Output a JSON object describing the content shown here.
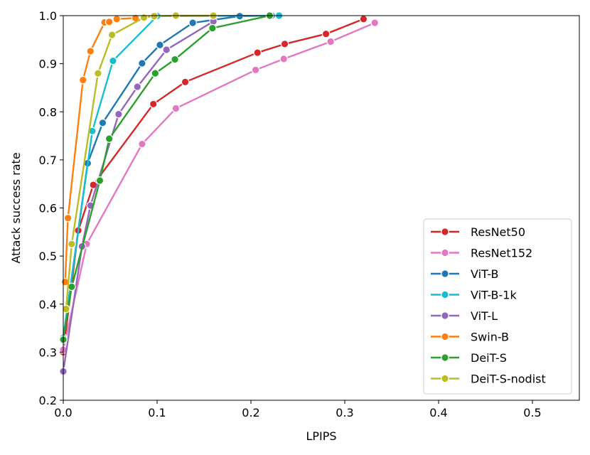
{
  "chart_data": {
    "type": "line",
    "title": "",
    "xlabel": "LPIPS",
    "ylabel": "Attack success rate",
    "xlim": [
      0.0,
      0.55
    ],
    "ylim": [
      0.2,
      1.0
    ],
    "xticks": [
      0.0,
      0.1,
      0.2,
      0.3,
      0.4,
      0.5
    ],
    "xtick_labels": [
      "0.0",
      "0.1",
      "0.2",
      "0.3",
      "0.4",
      "0.5"
    ],
    "yticks": [
      0.2,
      0.3,
      0.4,
      0.5,
      0.6,
      0.7,
      0.8,
      0.9,
      1.0
    ],
    "ytick_labels": [
      "0.2",
      "0.3",
      "0.4",
      "0.5",
      "0.6",
      "0.7",
      "0.8",
      "0.9",
      "1.0"
    ],
    "grid": false,
    "legend_position": "lower-right",
    "series": [
      {
        "name": "ResNet50",
        "color": "#d62728",
        "x": [
          0.0,
          0.016,
          0.032,
          0.096,
          0.13,
          0.207,
          0.236,
          0.28,
          0.32
        ],
        "y": [
          0.3,
          0.553,
          0.648,
          0.816,
          0.862,
          0.923,
          0.941,
          0.962,
          0.993
        ]
      },
      {
        "name": "ResNet152",
        "color": "#e377c2",
        "x": [
          0.0,
          0.025,
          0.084,
          0.12,
          0.205,
          0.235,
          0.285,
          0.332
        ],
        "y": [
          0.305,
          0.525,
          0.733,
          0.807,
          0.887,
          0.91,
          0.946,
          0.985
        ]
      },
      {
        "name": "ViT-B",
        "color": "#1f77b4",
        "x": [
          0.0,
          0.026,
          0.042,
          0.084,
          0.103,
          0.138,
          0.188,
          0.222
        ],
        "y": [
          0.33,
          0.693,
          0.777,
          0.901,
          0.939,
          0.985,
          0.999,
          1.0
        ]
      },
      {
        "name": "ViT-B-1k",
        "color": "#17becf",
        "x": [
          0.0,
          0.031,
          0.053,
          0.1,
          0.23
        ],
        "y": [
          0.33,
          0.76,
          0.906,
          0.999,
          1.0
        ]
      },
      {
        "name": "ViT-L",
        "color": "#9467bd",
        "x": [
          0.0,
          0.02,
          0.029,
          0.059,
          0.079,
          0.11,
          0.16
        ],
        "y": [
          0.26,
          0.52,
          0.605,
          0.795,
          0.852,
          0.929,
          0.988
        ]
      },
      {
        "name": "Swin-B",
        "color": "#ff7f0e",
        "x": [
          0.002,
          0.005,
          0.021,
          0.029,
          0.044,
          0.049,
          0.057,
          0.077
        ],
        "y": [
          0.446,
          0.579,
          0.866,
          0.926,
          0.986,
          0.987,
          0.993,
          0.995
        ]
      },
      {
        "name": "DeiT-S",
        "color": "#2ca02c",
        "x": [
          0.0,
          0.009,
          0.039,
          0.049,
          0.098,
          0.119,
          0.159,
          0.22
        ],
        "y": [
          0.326,
          0.436,
          0.657,
          0.744,
          0.88,
          0.909,
          0.974,
          1.0
        ]
      },
      {
        "name": "DeiT-S-nodist",
        "color": "#bcbd22",
        "x": [
          0.003,
          0.009,
          0.037,
          0.052,
          0.086,
          0.097,
          0.12,
          0.16
        ],
        "y": [
          0.39,
          0.525,
          0.88,
          0.96,
          0.996,
          0.999,
          1.0,
          1.0
        ]
      }
    ]
  }
}
